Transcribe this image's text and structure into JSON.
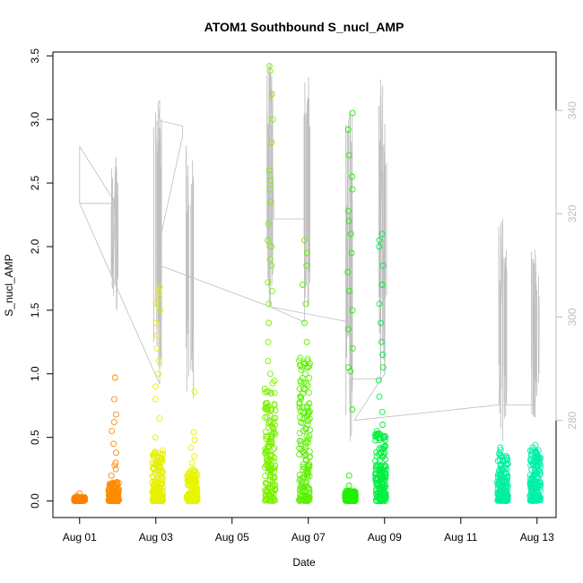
{
  "chart_data": {
    "type": "scatter",
    "title": "ATOM1 Southbound S_nucl_AMP",
    "xlabel": "Date",
    "ylabel": "S_nucl_AMP",
    "x_ticks": [
      "Aug 01",
      "Aug 03",
      "Aug 05",
      "Aug 07",
      "Aug 09",
      "Aug 11",
      "Aug 13"
    ],
    "x_tick_days": [
      1,
      3,
      5,
      7,
      9,
      11,
      13
    ],
    "xlim": [
      0.3,
      13.5
    ],
    "ylim": [
      -0.13,
      3.53
    ],
    "y_ticks": [
      "0.0",
      "0.5",
      "1.0",
      "1.5",
      "2.0",
      "2.5",
      "3.0",
      "3.5"
    ],
    "y_tick_values": [
      0,
      0.5,
      1.0,
      1.5,
      2.0,
      2.5,
      3.0,
      3.5
    ],
    "y2_ticks": [
      "280",
      "300",
      "320",
      "340"
    ],
    "y2_tick_values": [
      280,
      300,
      320,
      340
    ],
    "y2lim": [
      261.2,
      351.3
    ],
    "grid": false,
    "marker": "open-circle",
    "line_series_color": "#bebebe",
    "clusters": [
      {
        "day": 1.0,
        "color": "#ff8000",
        "y_max_dense": 0.03,
        "outliers": [
          0.0,
          0.02,
          0.04,
          0.06
        ]
      },
      {
        "day": 1.9,
        "color": "#ff8c00",
        "y_max_dense": 0.15,
        "outliers": [
          0.2,
          0.25,
          0.28,
          0.3,
          0.38,
          0.45,
          0.55,
          0.62,
          0.68,
          0.8,
          0.97
        ]
      },
      {
        "day": 3.05,
        "color": "#e6f000",
        "y_max_dense": 0.4,
        "outliers": [
          0.5,
          0.65,
          0.8,
          0.9,
          1.0,
          1.1,
          1.2,
          1.3,
          1.4,
          1.5,
          1.55,
          1.6,
          1.65,
          1.68
        ]
      },
      {
        "day": 3.95,
        "color": "#e6f500",
        "y_max_dense": 0.25,
        "outliers": [
          0.3,
          0.35,
          0.42,
          0.48,
          0.54,
          0.86
        ]
      },
      {
        "day": 6.0,
        "color": "#7cf000",
        "y_max_dense": 0.95,
        "outliers": [
          1.0,
          1.1,
          1.25,
          1.4,
          1.55,
          1.65,
          1.72,
          1.85,
          1.9,
          2.0,
          2.05,
          2.18,
          2.35,
          2.45,
          2.52,
          2.6,
          2.82,
          3.0,
          3.2,
          3.38,
          3.42
        ]
      },
      {
        "day": 6.9,
        "color": "#5cf000",
        "y_max_dense": 1.15,
        "outliers": [
          1.25,
          1.4,
          1.55,
          1.7,
          1.85,
          1.95,
          2.05
        ]
      },
      {
        "day": 8.1,
        "color": "#22f000",
        "y_max_dense": 0.08,
        "outliers": [
          0.12,
          0.2,
          0.72,
          1.02,
          1.05,
          1.2,
          1.35,
          1.5,
          1.65,
          1.8,
          1.95,
          2.1,
          2.2,
          2.28,
          2.45,
          2.55,
          2.72,
          2.92,
          3.05
        ]
      },
      {
        "day": 8.9,
        "color": "#00f040",
        "y_max_dense": 0.55,
        "outliers": [
          0.6,
          0.7,
          0.82,
          0.95,
          1.05,
          1.15,
          1.25,
          1.4,
          1.55,
          1.7,
          1.85,
          2.0,
          2.05,
          2.1
        ]
      },
      {
        "day": 12.1,
        "color": "#00f0a0",
        "y_max_dense": 0.38,
        "outliers": [
          0.4,
          0.42
        ]
      },
      {
        "day": 12.95,
        "color": "#00f0a8",
        "y_max_dense": 0.4,
        "outliers": [
          0.42,
          0.44
        ]
      }
    ],
    "line_path": [
      [
        1.0,
        333
      ],
      [
        1.0,
        322
      ],
      [
        1.95,
        322
      ],
      [
        1.95,
        331
      ],
      [
        1.85,
        306
      ],
      [
        1.95,
        322
      ],
      [
        1.0,
        333
      ],
      [
        1.0,
        322
      ],
      [
        3.1,
        287
      ],
      [
        3.1,
        342
      ],
      [
        3.05,
        341
      ],
      [
        3.1,
        338
      ],
      [
        3.7,
        337
      ],
      [
        3.7,
        335
      ],
      [
        3.05,
        313
      ],
      [
        3.1,
        310
      ],
      [
        6.0,
        302
      ],
      [
        6.0,
        349
      ],
      [
        6.1,
        319
      ],
      [
        6.9,
        319
      ],
      [
        6.9,
        299
      ],
      [
        6.0,
        302
      ],
      [
        8.1,
        299
      ],
      [
        8.1,
        340
      ],
      [
        8.05,
        337
      ],
      [
        8.1,
        276
      ],
      [
        8.1,
        288
      ],
      [
        8.9,
        288
      ],
      [
        8.9,
        346
      ],
      [
        8.9,
        345
      ],
      [
        9.0,
        289
      ],
      [
        8.2,
        280
      ],
      [
        12.0,
        283
      ],
      [
        12.1,
        319
      ],
      [
        12.1,
        276
      ],
      [
        12.1,
        283
      ],
      [
        12.95,
        283
      ],
      [
        12.95,
        313
      ],
      [
        13.0,
        301
      ],
      [
        12.95,
        283
      ]
    ],
    "spikes": [
      {
        "day": 1.9,
        "y2_low": 300,
        "y2_high": 331
      },
      {
        "day": 3.05,
        "y2_low": 290,
        "y2_high": 342
      },
      {
        "day": 3.9,
        "y2_low": 284,
        "y2_high": 338
      },
      {
        "day": 6.0,
        "y2_low": 300,
        "y2_high": 349
      },
      {
        "day": 6.95,
        "y2_low": 300,
        "y2_high": 347
      },
      {
        "day": 8.05,
        "y2_low": 276,
        "y2_high": 340
      },
      {
        "day": 8.95,
        "y2_low": 288,
        "y2_high": 346
      },
      {
        "day": 12.1,
        "y2_low": 276,
        "y2_high": 319
      },
      {
        "day": 12.95,
        "y2_low": 280,
        "y2_high": 313
      }
    ]
  }
}
